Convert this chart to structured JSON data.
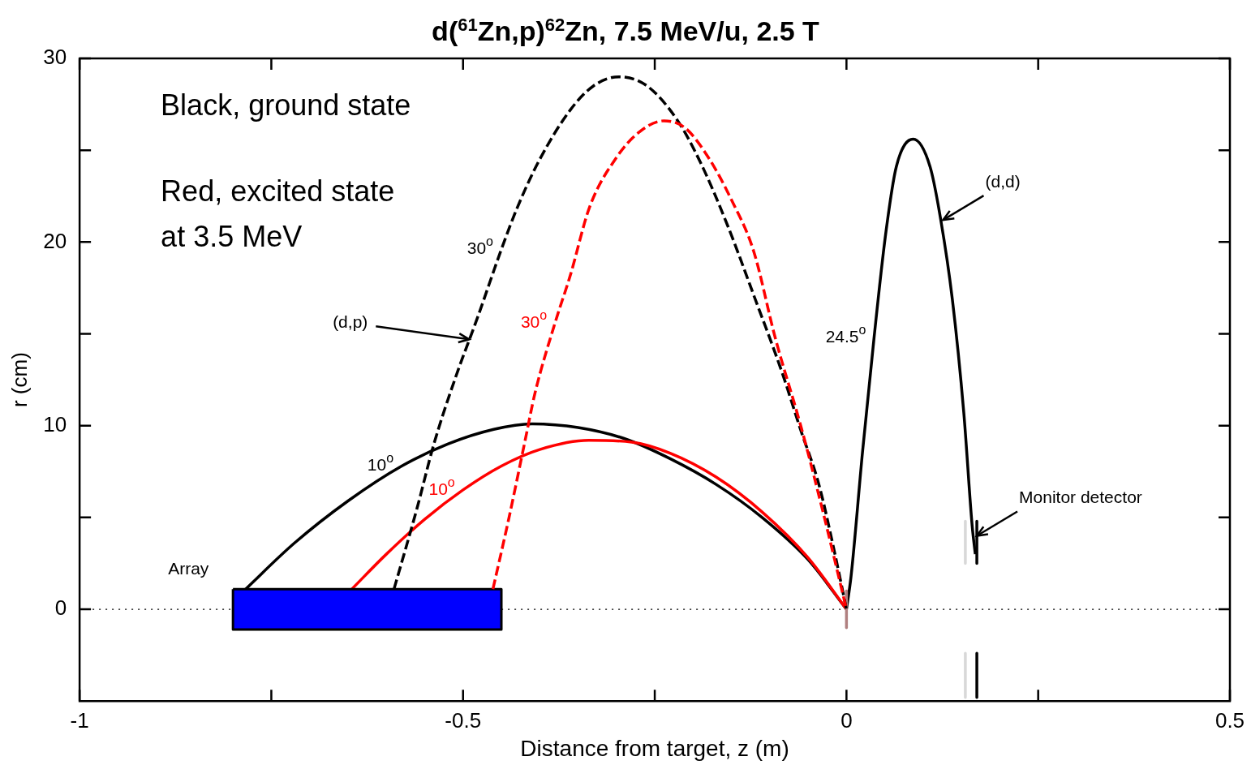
{
  "chart_data": {
    "type": "line",
    "title": "d($^{61}$Zn,p)$^{62}$Zn, 7.5 MeV/u, 2.5 T",
    "xlabel": "Distance from target, z (m)",
    "ylabel": "r (cm)",
    "xlim": [
      -1,
      0.5
    ],
    "xticks": [
      -1,
      {
        "value": -0.75,
        "label": null
      },
      -0.5,
      {
        "value": -0.25,
        "label": null
      },
      0,
      {
        "value": 0.25,
        "label": null
      },
      0.5
    ],
    "ylim": [
      -5,
      30
    ],
    "yticks": [
      0,
      {
        "value": 5,
        "label": null
      },
      10,
      {
        "value": 15,
        "label": null
      },
      20,
      {
        "value": 25,
        "label": null
      },
      30
    ],
    "marker": "none",
    "line_style": "solid",
    "series": [
      {
        "name": "10$^{o}$",
        "color": "#000000",
        "x": [
          -0.786,
          -0.72,
          -0.65,
          -0.58,
          -0.52,
          -0.46,
          -0.41,
          -0.35,
          -0.29,
          -0.23,
          -0.17,
          -0.11,
          -0.05,
          0
        ],
        "values": [
          1.0,
          3.6,
          5.9,
          7.8,
          9.0,
          9.8,
          10.1,
          9.9,
          9.3,
          8.2,
          6.8,
          5.0,
          2.7,
          0
        ]
      },
      {
        "name": "10$^{o}$",
        "color": "#ff0000",
        "x": [
          -0.645,
          -0.6,
          -0.55,
          -0.5,
          -0.45,
          -0.4,
          -0.336,
          -0.28,
          -0.23,
          -0.17,
          -0.11,
          -0.05,
          0
        ],
        "values": [
          1.1,
          3.0,
          4.9,
          6.5,
          7.8,
          8.7,
          9.2,
          9.1,
          8.5,
          7.2,
          5.3,
          2.8,
          0
        ]
      },
      {
        "name": "30$^{o}$",
        "color": "#000000",
        "line_style": "dashed",
        "x": [
          -0.59,
          -0.56,
          -0.538,
          -0.51,
          -0.481,
          -0.45,
          -0.429,
          -0.4,
          -0.36,
          -0.33,
          -0.297,
          -0.26,
          -0.22,
          -0.19,
          -0.155,
          -0.12,
          -0.084,
          -0.06,
          -0.036,
          -0.015,
          0
        ],
        "values": [
          1.1,
          5.5,
          9.0,
          12.6,
          15.9,
          19.6,
          21.9,
          24.5,
          27.2,
          28.5,
          29.0,
          28.5,
          26.6,
          24.3,
          20.9,
          17.0,
          12.9,
          9.8,
          6.8,
          3.0,
          0
        ]
      },
      {
        "name": "30$^{o}$",
        "color": "#ff0000",
        "line_style": "dashed",
        "x": [
          -0.461,
          -0.44,
          -0.42,
          -0.406,
          -0.38,
          -0.36,
          -0.335,
          -0.3,
          -0.27,
          -0.238,
          -0.21,
          -0.18,
          -0.15,
          -0.121,
          -0.093,
          -0.059,
          -0.03,
          0
        ],
        "values": [
          1.1,
          5.0,
          9.0,
          11.8,
          15.6,
          18.2,
          21.9,
          24.6,
          26.0,
          26.6,
          26.2,
          24.6,
          22.3,
          19.5,
          14.8,
          9.9,
          5.2,
          0
        ]
      },
      {
        "name": "24.5$^{o}$",
        "color": "#000000",
        "x": [
          0,
          0.006,
          0.021,
          0.036,
          0.051,
          0.065,
          0.087,
          0.109,
          0.123,
          0.138,
          0.153,
          0.164,
          0.168
        ],
        "values": [
          0,
          1.8,
          8.6,
          14.8,
          20.4,
          24.1,
          25.6,
          24.1,
          21.2,
          16.9,
          10.7,
          4.5,
          3.0
        ]
      },
      {
        "name": "Array",
        "type": "area",
        "color": "#0000ff",
        "x": [
          -0.8,
          -0.45,
          -0.45,
          -0.8,
          -0.8
        ],
        "values": [
          1.1,
          1.1,
          -1.1,
          -1.1,
          1.1
        ]
      },
      {
        "color": "#b08080",
        "x": [
          0,
          0
        ],
        "values": [
          1.0,
          -1.0
        ]
      },
      {
        "color": "#d8d8d8",
        "x": [
          0.155,
          0.155
        ],
        "values": [
          4.8,
          2.5
        ]
      },
      {
        "color": "#d8d8d8",
        "x": [
          0.155,
          0.155
        ],
        "values": [
          -2.4,
          -4.8
        ]
      },
      {
        "color": "#000000",
        "x": [
          0.17,
          0.17
        ],
        "values": [
          4.8,
          2.5
        ]
      },
      {
        "color": "#000000",
        "x": [
          0.17,
          0.17
        ],
        "values": [
          -2.4,
          -4.8
        ]
      }
    ],
    "ref_lines": [
      {
        "axis": "y",
        "value": 0,
        "color": "#000000",
        "line_style": "dotted"
      }
    ],
    "annotations": [
      "Black, ground state",
      "Red, excited state at 3.5 MeV",
      {
        "text": "(d,p)",
        "x": -0.492,
        "y": 14.7
      },
      {
        "text": "(d,d)",
        "x": 0.126,
        "y": 21.2
      },
      {
        "text": "Monitor detector",
        "x": 0.17,
        "y": 4.0
      }
    ]
  }
}
